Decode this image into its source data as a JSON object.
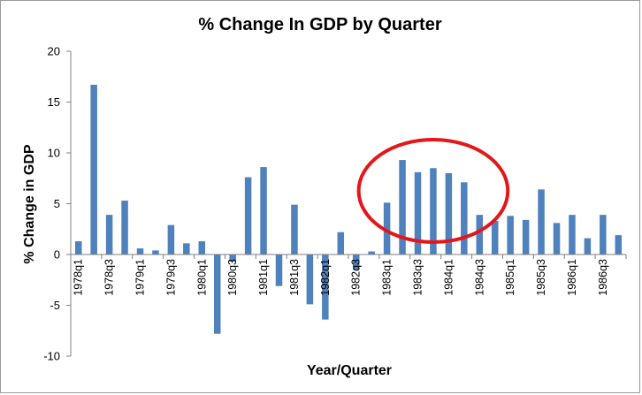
{
  "chart_data": {
    "type": "bar",
    "title": "% Change In GDP by Quarter",
    "xlabel": "Year/Quarter",
    "ylabel": "% Change in GDP",
    "ylim": [
      -10,
      20
    ],
    "yticks": [
      -10,
      -5,
      0,
      5,
      10,
      15,
      20
    ],
    "grid": false,
    "legend": "none",
    "series_color": "#4f81bd",
    "categories": [
      "1978q1",
      "1978q2",
      "1978q3",
      "1978q4",
      "1979q1",
      "1979q2",
      "1979q3",
      "1979q4",
      "1980q1",
      "1980q2",
      "1980q3",
      "1980q4",
      "1981q1",
      "1981q2",
      "1981q3",
      "1981q4",
      "1982q1",
      "1982q2",
      "1982q3",
      "1982q4",
      "1983q1",
      "1983q2",
      "1983q3",
      "1983q4",
      "1984q1",
      "1984q2",
      "1984q3",
      "1984q4",
      "1985q1",
      "1985q2",
      "1985q3",
      "1985q4",
      "1986q1",
      "1986q2",
      "1986q3",
      "1986q4"
    ],
    "tick_label_categories": [
      "1978q1",
      "1978q3",
      "1979q1",
      "1979q3",
      "1980q1",
      "1980q3",
      "1981q1",
      "1981q3",
      "1982q1",
      "1982q3",
      "1983q1",
      "1983q3",
      "1984q1",
      "1984q3",
      "1985q1",
      "1985q3",
      "1986q1",
      "1986q3"
    ],
    "values": [
      1.3,
      16.7,
      3.9,
      5.3,
      0.6,
      0.4,
      2.9,
      1.1,
      1.3,
      -7.8,
      -0.7,
      7.6,
      8.6,
      -3.1,
      4.9,
      -4.9,
      -6.4,
      2.2,
      -1.5,
      0.3,
      5.1,
      9.3,
      8.1,
      8.5,
      8.0,
      7.1,
      3.9,
      3.3,
      3.8,
      3.4,
      6.4,
      3.1,
      3.9,
      1.6,
      3.9,
      1.9
    ],
    "annotation": {
      "shape": "ellipse",
      "color": "#e3161b",
      "covers_categories": [
        "1983q1",
        "1984q3"
      ]
    }
  }
}
